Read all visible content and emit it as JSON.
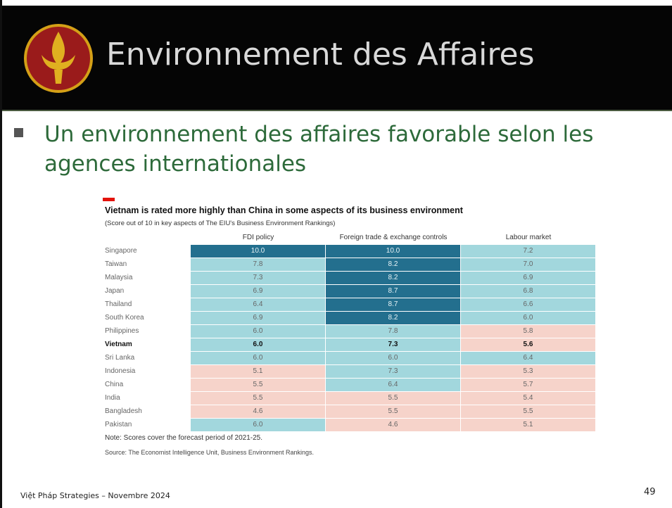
{
  "header": {
    "title": "Environnement des Affaires"
  },
  "bullet": "Un environnement des affaires favorable selon les agences internationales",
  "table": {
    "title": "Vietnam is rated more highly than China in some aspects of its business environment",
    "subtitle": "(Score out of 10 in key aspects of The EIU's Business Environment Rankings)",
    "columns": [
      "FDI policy",
      "Foreign trade & exchange controls",
      "Labour market"
    ],
    "bold_row": 7,
    "rows": [
      [
        "Singapore",
        "10.0",
        "10.0",
        "7.2"
      ],
      [
        "Taiwan",
        "7.8",
        "8.2",
        "7.0"
      ],
      [
        "Malaysia",
        "7.3",
        "8.2",
        "6.9"
      ],
      [
        "Japan",
        "6.9",
        "8.7",
        "6.8"
      ],
      [
        "Thailand",
        "6.4",
        "8.7",
        "6.6"
      ],
      [
        "South Korea",
        "6.9",
        "8.2",
        "6.0"
      ],
      [
        "Philippines",
        "6.0",
        "7.8",
        "5.8"
      ],
      [
        "Vietnam",
        "6.0",
        "7.3",
        "5.6"
      ],
      [
        "Sri Lanka",
        "6.0",
        "6.0",
        "6.4"
      ],
      [
        "Indonesia",
        "5.1",
        "7.3",
        "5.3"
      ],
      [
        "China",
        "5.5",
        "6.4",
        "5.7"
      ],
      [
        "India",
        "5.5",
        "5.5",
        "5.4"
      ],
      [
        "Bangladesh",
        "4.6",
        "5.5",
        "5.5"
      ],
      [
        "Pakistan",
        "6.0",
        "4.6",
        "5.1"
      ]
    ],
    "colors": [
      [
        "#236f8e",
        "#236f8e",
        "#a2d7dd"
      ],
      [
        "#a2d7dd",
        "#236f8e",
        "#a2d7dd"
      ],
      [
        "#a2d7dd",
        "#236f8e",
        "#a2d7dd"
      ],
      [
        "#a2d7dd",
        "#236f8e",
        "#a2d7dd"
      ],
      [
        "#a2d7dd",
        "#236f8e",
        "#a2d7dd"
      ],
      [
        "#a2d7dd",
        "#236f8e",
        "#a2d7dd"
      ],
      [
        "#a2d7dd",
        "#a2d7dd",
        "#f6d3ca"
      ],
      [
        "#a2d7dd",
        "#a2d7dd",
        "#f6d3ca"
      ],
      [
        "#a2d7dd",
        "#a2d7dd",
        "#a2d7dd"
      ],
      [
        "#f6d3ca",
        "#a2d7dd",
        "#f6d3ca"
      ],
      [
        "#f6d3ca",
        "#a2d7dd",
        "#f6d3ca"
      ],
      [
        "#f6d3ca",
        "#f6d3ca",
        "#f6d3ca"
      ],
      [
        "#f6d3ca",
        "#f6d3ca",
        "#f6d3ca"
      ],
      [
        "#a2d7dd",
        "#f6d3ca",
        "#f6d3ca"
      ]
    ],
    "note": "Note: Scores cover the forecast period of 2021-25.",
    "source": "Source: The Economist Intelligence Unit, Business Environment Rankings."
  },
  "footer": {
    "text": "Việt Pháp Strategies – Novembre 2024",
    "page": "49"
  }
}
